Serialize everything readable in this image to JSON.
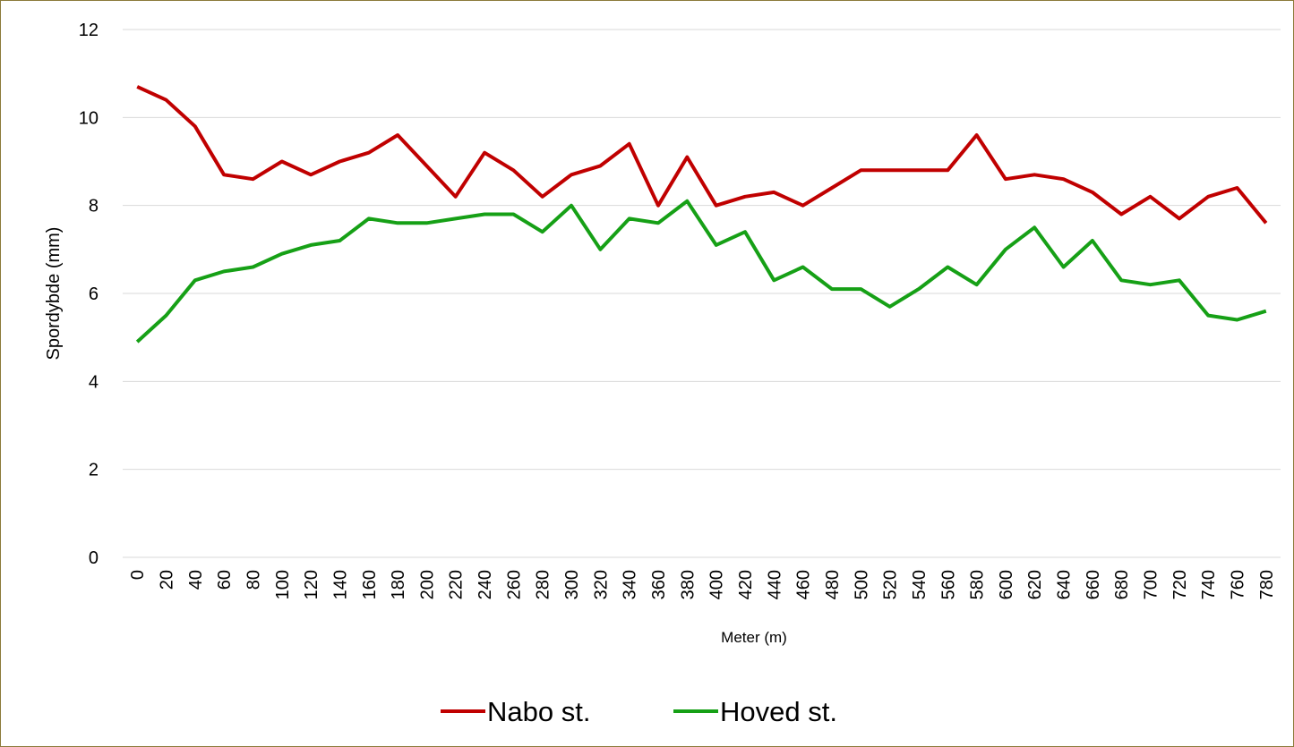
{
  "chart_data": {
    "type": "line",
    "x_label": "Meter (m)",
    "y_label": "Spordybde (mm)",
    "categories": [
      "0",
      "20",
      "40",
      "60",
      "80",
      "100",
      "120",
      "140",
      "160",
      "180",
      "200",
      "220",
      "240",
      "260",
      "280",
      "300",
      "320",
      "340",
      "360",
      "380",
      "400",
      "420",
      "440",
      "460",
      "480",
      "500",
      "520",
      "540",
      "560",
      "580",
      "600",
      "620",
      "640",
      "660",
      "680",
      "700",
      "720",
      "740",
      "760",
      "780"
    ],
    "series": [
      {
        "name": "Nabo st.",
        "color": "#c00000",
        "values": [
          10.7,
          10.4,
          9.8,
          8.7,
          8.6,
          9.0,
          8.7,
          9.0,
          9.2,
          9.6,
          8.9,
          8.2,
          9.2,
          8.8,
          8.2,
          8.7,
          8.9,
          9.4,
          8.0,
          9.1,
          8.0,
          8.2,
          8.3,
          8.0,
          8.4,
          8.8,
          8.8,
          8.8,
          8.8,
          9.6,
          8.6,
          8.7,
          8.6,
          8.3,
          7.8,
          8.2,
          7.7,
          8.2,
          8.4,
          7.6
        ]
      },
      {
        "name": "Hoved st.",
        "color": "#16a016",
        "values": [
          4.9,
          5.5,
          6.3,
          6.5,
          6.6,
          6.9,
          7.1,
          7.2,
          7.7,
          7.6,
          7.6,
          7.7,
          7.8,
          7.8,
          7.4,
          8.0,
          7.0,
          7.7,
          7.6,
          8.1,
          7.1,
          7.4,
          6.3,
          6.6,
          6.1,
          6.1,
          5.7,
          6.1,
          6.6,
          6.2,
          7.0,
          7.5,
          6.6,
          7.2,
          6.3,
          6.2,
          6.3,
          5.5,
          5.4,
          5.6
        ]
      }
    ],
    "ylim": [
      0,
      12
    ],
    "yticks": [
      0,
      2,
      4,
      6,
      8,
      10,
      12
    ],
    "grid": true,
    "legend": "bottom"
  }
}
